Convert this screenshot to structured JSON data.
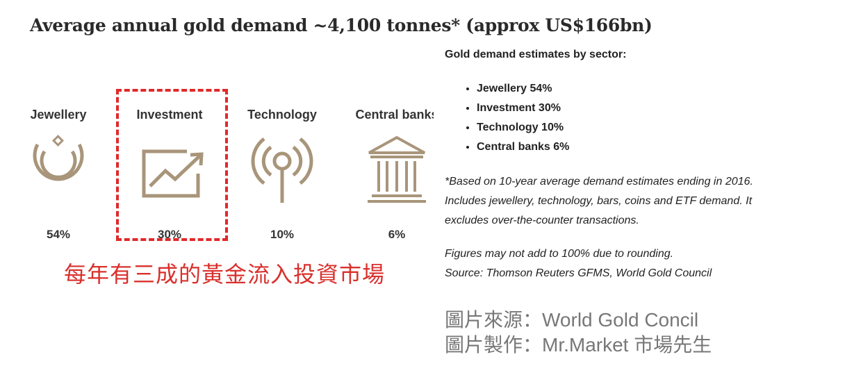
{
  "title": "Average annual gold demand ~4,100 tonnes* (approx US$166bn)",
  "sectors": [
    {
      "name": "Jewellery",
      "pct": "54%",
      "icon": "necklace-icon"
    },
    {
      "name": "Investment",
      "pct": "30%",
      "icon": "trend-chart-icon"
    },
    {
      "name": "Technology",
      "pct": "10%",
      "icon": "antenna-signal-icon"
    },
    {
      "name": "Central banks",
      "pct": "6%",
      "icon": "bank-building-icon"
    }
  ],
  "icon_color": "#a8957a",
  "highlight_color": "#e0292a",
  "caption_cn": "每年有三成的黃金流入投資市場",
  "estimates": {
    "heading": "Gold demand estimates by sector:",
    "items": [
      "Jewellery 54%",
      "Investment 30%",
      "Technology 10%",
      "Central banks 6%"
    ]
  },
  "note_lines": [
    "*Based on 10-year average demand estimates ending in 2016.",
    "Includes jewellery, technology, bars, coins and ETF demand. It",
    "excludes over-the-counter transactions."
  ],
  "note2_lines": [
    "Figures may not add to 100% due to rounding.",
    "Source: Thomson Reuters GFMS, World Gold Council"
  ],
  "credits": {
    "source": "圖片來源：World Gold Concil",
    "made_by": "圖片製作：Mr.Market 市場先生"
  }
}
